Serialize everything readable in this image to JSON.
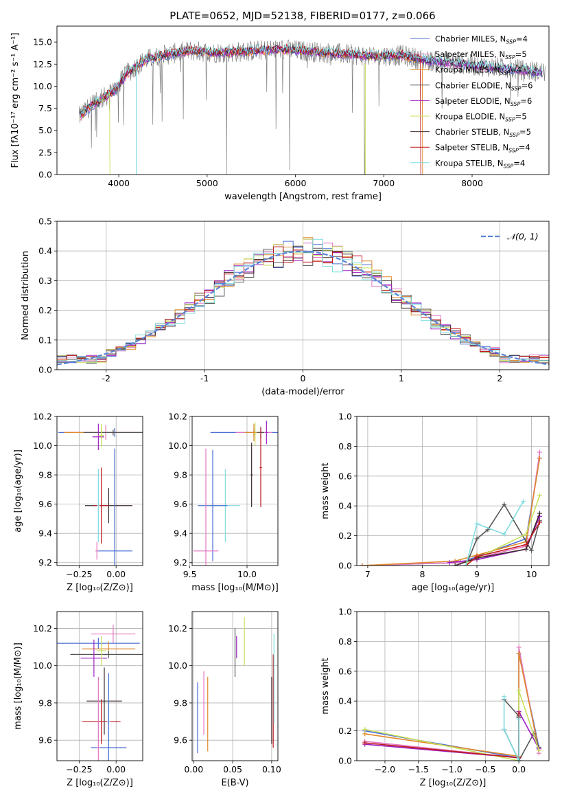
{
  "figure": {
    "title": "PLATE=0652, MJD=52138, FIBERID=0177, z=0.066"
  },
  "colors": {
    "models": [
      "#4a6fd6",
      "#e377c2",
      "#e08a2a",
      "#555555",
      "#9d1fc4",
      "#c8e05a",
      "#3b2a2a",
      "#c0191d",
      "#7fdde0"
    ]
  },
  "chart_data": [
    {
      "id": "spectrum",
      "type": "line",
      "title": "PLATE=0652, MJD=52138, FIBERID=0177, z=0.066",
      "xlabel": "wavelength [Angstrom, rest frame]",
      "ylabel": "Flux [fλ10⁻¹⁷ erg cm⁻² s⁻¹ A⁻¹]",
      "xlim": [
        3300,
        8870
      ],
      "ylim": [
        0,
        16.8
      ],
      "xticks": [
        4000,
        5000,
        6000,
        7000,
        8000
      ],
      "yticks": [
        0.0,
        2.5,
        5.0,
        7.5,
        10.0,
        12.5,
        15.0
      ],
      "grid": false,
      "legend_position": "right",
      "series": [
        {
          "name": "Chabrier MILES, N_SSP=4"
        },
        {
          "name": "Salpeter MILES, N_SSP=5"
        },
        {
          "name": "Kroupa MILES, N_SSP=4"
        },
        {
          "name": "Chabrier ELODIE, N_SSP=6"
        },
        {
          "name": "Salpeter ELODIE, N_SSP=6"
        },
        {
          "name": "Kroupa ELODIE, N_SSP=5"
        },
        {
          "name": "Chabrier STELIB, N_SSP=5"
        },
        {
          "name": "Salpeter STELIB, N_SSP=4"
        },
        {
          "name": "Kroupa STELIB, N_SSP=4"
        }
      ],
      "continuum": {
        "x": [
          3550,
          3650,
          3800,
          3950,
          4100,
          4300,
          4500,
          4800,
          5100,
          5400,
          5800,
          6200,
          6600,
          6900,
          7200,
          7500,
          7800,
          8100,
          8400,
          8800
        ],
        "y": [
          6.5,
          7.5,
          8.5,
          9.5,
          11.5,
          13.0,
          13.5,
          14.0,
          13.8,
          13.9,
          14.2,
          13.9,
          13.6,
          13.4,
          13.5,
          12.9,
          12.6,
          12.3,
          12.0,
          11.6
        ]
      }
    },
    {
      "id": "residuals",
      "type": "histogram",
      "xlabel": "(data-model)/error",
      "ylabel": "Normed distribution",
      "xlim": [
        -2.5,
        2.5
      ],
      "ylim": [
        0,
        0.5
      ],
      "xticks": [
        -2,
        -1,
        0,
        1,
        2
      ],
      "yticks": [
        0.0,
        0.1,
        0.2,
        0.3,
        0.4,
        0.5
      ],
      "grid": true,
      "legend_position": "top-right",
      "reference_curve": {
        "name": "𝒩(0, 1)",
        "mean": 0,
        "sigma": 1
      },
      "bin_width": 0.1
    },
    {
      "id": "age_vs_Z",
      "type": "errorbar",
      "xlabel": "Z [log₁₀(Z/Z⊙)]",
      "ylabel": "age  [log₁₀(age/yr)]",
      "xlim": [
        -0.4,
        0.18
      ],
      "ylim": [
        9.18,
        10.2
      ],
      "xticks": [
        -0.25,
        0.0
      ],
      "xtick_labels": [
        "−0.25",
        "0.00"
      ],
      "yticks": [
        9.2,
        9.4,
        9.6,
        9.8,
        10.0,
        10.2
      ],
      "grid": true,
      "points": [
        {
          "x": -0.01,
          "y": 10.09,
          "xerr": 0.38,
          "yerr": 0.03
        },
        {
          "x": -0.07,
          "y": 10.09,
          "xerr": 0.28,
          "yerr": 0.05
        },
        {
          "x": -0.1,
          "y": 10.09,
          "xerr": 0.25,
          "yerr": 0.04
        },
        {
          "x": -0.02,
          "y": 10.09,
          "xerr": 0.2,
          "yerr": 0.02
        },
        {
          "x": -0.12,
          "y": 10.06,
          "xerr": 0.04,
          "yerr": 0.09
        },
        {
          "x": -0.1,
          "y": 10.07,
          "xerr": 0.02,
          "yerr": 0.08
        },
        {
          "x": -0.05,
          "y": 9.59,
          "xerr": 0.16,
          "yerr": 0.12
        },
        {
          "x": -0.1,
          "y": 9.59,
          "xerr": 0.05,
          "yerr": 0.26
        },
        {
          "x": -0.12,
          "y": 9.59,
          "xerr": 0.01,
          "yerr": 0.25
        },
        {
          "x": -0.01,
          "y": 9.28,
          "xerr": 0.12,
          "yerr": 0.7
        },
        {
          "x": -0.13,
          "y": 9.28,
          "xerr": 0.01,
          "yerr": 0.06
        }
      ]
    },
    {
      "id": "age_vs_mass",
      "type": "errorbar",
      "xlabel": "mass [log₁₀(M/M⊙)]",
      "ylabel": "",
      "xlim": [
        9.52,
        10.27
      ],
      "ylim": [
        9.18,
        10.2
      ],
      "xticks": [
        9.5,
        10.0
      ],
      "xtick_labels": [
        "9.5",
        "10.0"
      ],
      "yticks": [
        9.2,
        9.4,
        9.6,
        9.8,
        10.0,
        10.2
      ],
      "grid": true,
      "points": [
        {
          "x": 10.06,
          "y": 10.09,
          "xerr": 0.38,
          "yerr": 0.02
        },
        {
          "x": 10.06,
          "y": 10.09,
          "xerr": 0.16,
          "yerr": 0.03
        },
        {
          "x": 10.06,
          "y": 10.09,
          "xerr": 0.08,
          "yerr": 0.06
        },
        {
          "x": 10.12,
          "y": 10.09,
          "xerr": 0.03,
          "yerr": 0.04
        },
        {
          "x": 10.17,
          "y": 10.09,
          "xerr": 0.01,
          "yerr": 0.08
        },
        {
          "x": 10.07,
          "y": 10.08,
          "xerr": 0.01,
          "yerr": 0.08
        },
        {
          "x": 10.04,
          "y": 9.8,
          "xerr": 0.01,
          "yerr": 0.22
        },
        {
          "x": 10.12,
          "y": 9.85,
          "xerr": 0.01,
          "yerr": 0.27
        },
        {
          "x": 9.81,
          "y": 9.59,
          "xerr": 0.13,
          "yerr": 0.25
        },
        {
          "x": 9.7,
          "y": 9.59,
          "xerr": 0.13,
          "yerr": 0.38
        },
        {
          "x": 9.64,
          "y": 9.28,
          "xerr": 0.11,
          "yerr": 0.7
        }
      ]
    },
    {
      "id": "weight_vs_age",
      "type": "line",
      "xlabel": "age  [log₁₀(age/yr)]",
      "ylabel": "mass weight",
      "xlim": [
        6.8,
        10.32
      ],
      "ylim": [
        0,
        1.0
      ],
      "xticks": [
        7,
        8,
        9,
        10
      ],
      "yticks": [
        0.0,
        0.2,
        0.4,
        0.6,
        0.8,
        1.0
      ],
      "grid": true,
      "series": [
        {
          "x": [
            6.9,
            8.7,
            9.0,
            9.9,
            10.15
          ],
          "y": [
            0.0,
            0.02,
            0.06,
            0.18,
            0.72
          ]
        },
        {
          "x": [
            6.9,
            8.7,
            9.0,
            9.9,
            10.15
          ],
          "y": [
            0.0,
            0.02,
            0.05,
            0.13,
            0.76
          ]
        },
        {
          "x": [
            6.9,
            8.6,
            9.0,
            9.9,
            10.15
          ],
          "y": [
            0.0,
            0.03,
            0.07,
            0.16,
            0.72
          ]
        },
        {
          "x": [
            8.8,
            9.0,
            9.2,
            9.5,
            10.0,
            10.15
          ],
          "y": [
            0.0,
            0.18,
            0.24,
            0.41,
            0.1,
            0.3
          ]
        },
        {
          "x": [
            8.5,
            9.0,
            9.9,
            10.15
          ],
          "y": [
            0.02,
            0.04,
            0.11,
            0.33
          ]
        },
        {
          "x": [
            8.8,
            9.0,
            9.9,
            10.15
          ],
          "y": [
            0.02,
            0.05,
            0.21,
            0.47
          ]
        },
        {
          "x": [
            8.6,
            9.0,
            9.9,
            10.15
          ],
          "y": [
            0.0,
            0.05,
            0.11,
            0.35
          ]
        },
        {
          "x": [
            8.8,
            9.0,
            9.9,
            10.15
          ],
          "y": [
            0.0,
            0.06,
            0.14,
            0.29
          ]
        },
        {
          "x": [
            8.8,
            9.0,
            9.5,
            9.85
          ],
          "y": [
            0.0,
            0.28,
            0.21,
            0.43
          ]
        }
      ]
    },
    {
      "id": "mass_vs_Z",
      "type": "errorbar",
      "xlabel": "Z [log₁₀(Z/Z⊙)]",
      "ylabel": "mass [log₁₀(M/M⊙)]",
      "xlim": [
        -0.4,
        0.18
      ],
      "ylim": [
        9.49,
        10.29
      ],
      "xticks": [
        -0.25,
        0.0
      ],
      "xtick_labels": [
        "−0.25",
        "0.00"
      ],
      "yticks": [
        9.6,
        9.8,
        10.0,
        10.2
      ],
      "grid": true,
      "points": [
        {
          "x": -0.12,
          "y": 10.12,
          "xerr": 0.28,
          "yerr": 0.03
        },
        {
          "x": -0.02,
          "y": 10.17,
          "xerr": 0.15,
          "yerr": 0.05
        },
        {
          "x": -0.05,
          "y": 10.09,
          "xerr": 0.18,
          "yerr": 0.04
        },
        {
          "x": -0.05,
          "y": 10.06,
          "xerr": 0.26,
          "yerr": 0.02
        },
        {
          "x": -0.15,
          "y": 10.04,
          "xerr": 0.09,
          "yerr": 0.1
        },
        {
          "x": -0.1,
          "y": 10.08,
          "xerr": 0.03,
          "yerr": 0.08
        },
        {
          "x": -0.08,
          "y": 9.81,
          "xerr": 0.12,
          "yerr": 0.18
        },
        {
          "x": -0.1,
          "y": 9.7,
          "xerr": 0.13,
          "yerr": 0.12
        },
        {
          "x": -0.05,
          "y": 9.7,
          "xerr": 0.01,
          "yerr": 0.26
        },
        {
          "x": -0.05,
          "y": 9.56,
          "xerr": 0.12,
          "yerr": 0.4
        },
        {
          "x": -0.12,
          "y": 9.56,
          "xerr": 0.01,
          "yerr": 0.38
        }
      ]
    },
    {
      "id": "mass_vs_ebv",
      "type": "errorbar",
      "xlabel": "E(B-V)",
      "ylabel": "",
      "xlim": [
        -0.002,
        0.108
      ],
      "ylim": [
        9.49,
        10.29
      ],
      "xticks": [
        0.0,
        0.05,
        0.1
      ],
      "xtick_labels": [
        "0.00",
        "0.05",
        "0.10"
      ],
      "yticks": [
        9.6,
        9.8,
        10.0,
        10.2
      ],
      "grid": true,
      "points": [
        {
          "x": 0.005,
          "y": 9.72,
          "xerr": 0,
          "yerr": 0.19
        },
        {
          "x": 0.013,
          "y": 9.8,
          "xerr": 0,
          "yerr": 0.17
        },
        {
          "x": 0.018,
          "y": 9.74,
          "xerr": 0,
          "yerr": 0.2
        },
        {
          "x": 0.053,
          "y": 10.07,
          "xerr": 0,
          "yerr": 0.13
        },
        {
          "x": 0.055,
          "y": 10.1,
          "xerr": 0,
          "yerr": 0.06
        },
        {
          "x": 0.065,
          "y": 10.13,
          "xerr": 0,
          "yerr": 0.13
        },
        {
          "x": 0.1,
          "y": 9.76,
          "xerr": 0,
          "yerr": 0.18
        },
        {
          "x": 0.102,
          "y": 9.81,
          "xerr": 0,
          "yerr": 0.25
        },
        {
          "x": 0.103,
          "y": 9.93,
          "xerr": 0,
          "yerr": 0.24
        }
      ]
    },
    {
      "id": "weight_vs_Z",
      "type": "line",
      "xlabel": "Z [log₁₀(Z/Z⊙)]",
      "ylabel": "mass weight",
      "xlim": [
        -2.42,
        0.45
      ],
      "ylim": [
        0,
        1.0
      ],
      "xticks": [
        -2.0,
        -1.5,
        -1.0,
        -0.5,
        0.0
      ],
      "xtick_labels": [
        "−2.0",
        "−1.5",
        "−1.0",
        "−0.5",
        "0.0"
      ],
      "yticks": [
        0.0,
        0.2,
        0.4,
        0.6,
        0.8,
        1.0
      ],
      "grid": true,
      "series": [
        {
          "x": [
            -2.3,
            0.0,
            0.0,
            0.3
          ],
          "y": [
            0.2,
            0.02,
            0.72,
            0.09
          ]
        },
        {
          "x": [
            -2.3,
            0.0,
            0.0,
            0.3
          ],
          "y": [
            0.13,
            0.02,
            0.76,
            0.05
          ]
        },
        {
          "x": [
            -2.3,
            0.0,
            0.0,
            0.3
          ],
          "y": [
            0.18,
            0.03,
            0.72,
            0.07
          ]
        },
        {
          "x": [
            -0.22,
            0.0,
            0.0,
            0.22,
            0.3
          ],
          "y": [
            0.41,
            0.3,
            0.0,
            0.18,
            0.09
          ]
        },
        {
          "x": [
            -2.3,
            0.0,
            0.0,
            0.3
          ],
          "y": [
            0.11,
            0.02,
            0.33,
            0.08
          ]
        },
        {
          "x": [
            -2.3,
            0.0,
            0.0,
            0.3
          ],
          "y": [
            0.21,
            0.0,
            0.47,
            0.07
          ]
        },
        {
          "x": [
            -0.22,
            0.0,
            0.0
          ],
          "y": [
            0.21,
            0.0,
            0.29
          ]
        },
        {
          "x": [
            -2.3,
            0.0,
            0.0
          ],
          "y": [
            0.12,
            0.02,
            0.32
          ]
        },
        {
          "x": [
            -0.22,
            -0.22,
            0.0,
            0.0
          ],
          "y": [
            0.43,
            0.21,
            0.0,
            0.28
          ]
        }
      ]
    }
  ]
}
